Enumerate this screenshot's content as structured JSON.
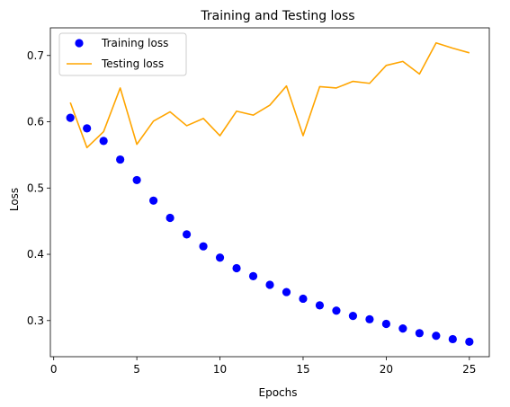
{
  "chart_data": {
    "type": "line",
    "title": "Training and Testing loss",
    "xlabel": "Epochs",
    "ylabel": "Loss",
    "xlim": [
      -0.2,
      26.2
    ],
    "ylim": [
      0.2455,
      0.7417
    ],
    "xticks": [
      0,
      5,
      10,
      15,
      20,
      25
    ],
    "yticks": [
      0.3,
      0.4,
      0.5,
      0.6,
      0.7
    ],
    "grid": false,
    "legend_position": "top-left",
    "series": [
      {
        "name": "Training loss",
        "style": "markers",
        "color": "#0000ff",
        "x": [
          1,
          2,
          3,
          4,
          5,
          6,
          7,
          8,
          9,
          10,
          11,
          12,
          13,
          14,
          15,
          16,
          17,
          18,
          19,
          20,
          21,
          22,
          23,
          24,
          25
        ],
        "y": [
          0.606,
          0.59,
          0.571,
          0.543,
          0.512,
          0.481,
          0.455,
          0.43,
          0.412,
          0.395,
          0.379,
          0.367,
          0.354,
          0.343,
          0.333,
          0.323,
          0.315,
          0.307,
          0.302,
          0.295,
          0.288,
          0.281,
          0.277,
          0.272,
          0.268
        ]
      },
      {
        "name": "Testing loss",
        "style": "line",
        "color": "#ffa500",
        "x": [
          1,
          2,
          3,
          4,
          5,
          6,
          7,
          8,
          9,
          10,
          11,
          12,
          13,
          14,
          15,
          16,
          17,
          18,
          19,
          20,
          21,
          22,
          23,
          24,
          25
        ],
        "y": [
          0.629,
          0.561,
          0.585,
          0.651,
          0.566,
          0.601,
          0.615,
          0.594,
          0.605,
          0.579,
          0.616,
          0.61,
          0.625,
          0.654,
          0.579,
          0.653,
          0.651,
          0.661,
          0.658,
          0.685,
          0.691,
          0.672,
          0.719,
          0.711,
          0.704
        ]
      }
    ]
  }
}
